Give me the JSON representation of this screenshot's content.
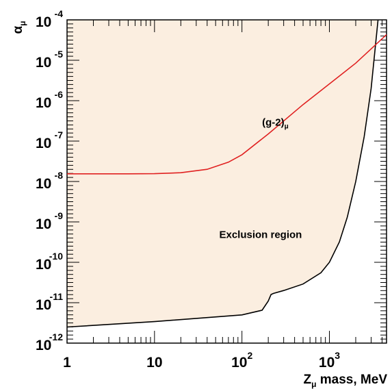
{
  "chart_data": {
    "type": "line",
    "title": "",
    "xlabel": {
      "base": "Z",
      "sub": "μ",
      "rest": " mass, MeV"
    },
    "ylabel": {
      "base": "α",
      "sub": "μ"
    },
    "x_scale": "log",
    "y_scale": "log",
    "xlim": [
      1,
      4500
    ],
    "ylim": [
      1e-12,
      0.0001
    ],
    "grid": false,
    "legend": "none",
    "x_ticks": [
      {
        "value": 1,
        "text": "1"
      },
      {
        "value": 10,
        "text": "10"
      },
      {
        "value": 100,
        "base": "10",
        "exp": "2"
      },
      {
        "value": 1000,
        "base": "10",
        "exp": "3"
      }
    ],
    "y_ticks": [
      {
        "value": 1e-12,
        "base": "10",
        "exp": "-12"
      },
      {
        "value": 1e-11,
        "base": "10",
        "exp": "-11"
      },
      {
        "value": 1e-10,
        "base": "10",
        "exp": "-10"
      },
      {
        "value": 1e-09,
        "base": "10",
        "exp": "-9"
      },
      {
        "value": 1e-08,
        "base": "10",
        "exp": "-8"
      },
      {
        "value": 1e-07,
        "base": "10",
        "exp": "-7"
      },
      {
        "value": 1e-06,
        "base": "10",
        "exp": "-6"
      },
      {
        "value": 1e-05,
        "base": "10",
        "exp": "-5"
      },
      {
        "value": 0.0001,
        "base": "10",
        "exp": "-4"
      }
    ],
    "series": [
      {
        "role": "exclusion-boundary",
        "color": "#000000",
        "fill": "#fbeee0",
        "x": [
          1,
          10,
          100,
          170,
          200,
          215,
          230,
          300,
          500,
          800,
          1000,
          1300,
          1600,
          2000,
          2500,
          3000,
          3600
        ],
        "y": [
          2.5e-12,
          3.4e-12,
          5e-12,
          6.5e-12,
          1.1e-11,
          1.6e-11,
          1.7e-11,
          2e-11,
          2.9e-11,
          5.5e-11,
          1e-10,
          3.2e-10,
          1.3e-09,
          1e-08,
          1.3e-07,
          2e-06,
          0.0001
        ]
      },
      {
        "name": "(g-2)μ",
        "color": "#e02020",
        "x": [
          1,
          5,
          10,
          20,
          40,
          70,
          100,
          200,
          500,
          1000,
          2000,
          4500
        ],
        "y": [
          1.55e-08,
          1.55e-08,
          1.56e-08,
          1.65e-08,
          2e-08,
          3e-08,
          4.6e-08,
          1.5e-07,
          8e-07,
          2.6e-06,
          8.5e-06,
          4.3e-05
        ]
      }
    ],
    "annotations": [
      {
        "base": "(g-2)",
        "sub": "μ",
        "x": 170,
        "y": 2.4e-07
      },
      {
        "text": "Exclusion region",
        "x": 55,
        "y": 4e-10
      }
    ]
  }
}
